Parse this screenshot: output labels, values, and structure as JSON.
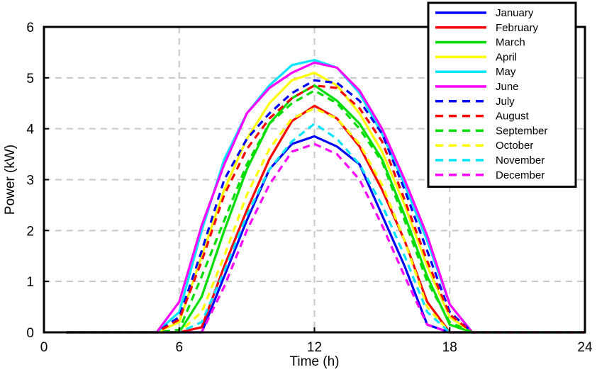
{
  "chart_data": {
    "type": "line",
    "title": "",
    "xlabel": "Time (h)",
    "ylabel": "Power (kW)",
    "xlim": [
      0,
      24
    ],
    "ylim": [
      0,
      6
    ],
    "xticks": [
      0,
      6,
      12,
      18,
      24
    ],
    "yticks": [
      0,
      1,
      2,
      3,
      4,
      5,
      6
    ],
    "grid": true,
    "grid_style": "dashed",
    "legend_position": "top-right",
    "x": [
      1,
      2,
      3,
      4,
      5,
      6,
      7,
      8,
      9,
      10,
      11,
      12,
      13,
      14,
      15,
      16,
      17,
      18,
      19,
      20,
      21,
      22,
      23,
      24
    ],
    "series": [
      {
        "name": "January",
        "color": "#0000ff",
        "dash": "solid",
        "values": [
          0,
          0,
          0,
          0,
          0,
          0,
          0,
          1.1,
          2.2,
          3.2,
          3.7,
          3.85,
          3.65,
          3.3,
          2.3,
          1.3,
          0.15,
          0,
          0,
          0,
          0,
          0,
          0,
          0
        ]
      },
      {
        "name": "February",
        "color": "#ff0000",
        "dash": "solid",
        "values": [
          0,
          0,
          0,
          0,
          0,
          0,
          0.1,
          1.3,
          2.4,
          3.4,
          4.15,
          4.45,
          4.2,
          3.65,
          2.8,
          1.8,
          0.6,
          0,
          0,
          0,
          0,
          0,
          0,
          0
        ]
      },
      {
        "name": "March",
        "color": "#00dd00",
        "dash": "solid",
        "values": [
          0,
          0,
          0,
          0,
          0,
          0,
          0.7,
          2.0,
          3.2,
          4.1,
          4.6,
          4.85,
          4.55,
          4.1,
          3.4,
          2.3,
          1.1,
          0.15,
          0,
          0,
          0,
          0,
          0,
          0
        ]
      },
      {
        "name": "April",
        "color": "#ffff00",
        "dash": "solid",
        "values": [
          0,
          0,
          0,
          0,
          0,
          0.2,
          1.5,
          2.8,
          3.8,
          4.5,
          4.95,
          5.1,
          4.85,
          4.3,
          3.55,
          2.5,
          1.3,
          0.3,
          0,
          0,
          0,
          0,
          0,
          0
        ]
      },
      {
        "name": "May",
        "color": "#00e5ff",
        "dash": "solid",
        "values": [
          0,
          0,
          0,
          0,
          0,
          0.4,
          2.0,
          3.4,
          4.3,
          4.85,
          5.25,
          5.35,
          5.2,
          4.7,
          3.9,
          2.9,
          1.8,
          0.55,
          0,
          0,
          0,
          0,
          0,
          0
        ]
      },
      {
        "name": "June",
        "color": "#ff00ff",
        "dash": "solid",
        "values": [
          0,
          0,
          0,
          0,
          0,
          0.6,
          2.1,
          3.3,
          4.3,
          4.8,
          5.1,
          5.3,
          5.2,
          4.75,
          4.0,
          3.0,
          1.9,
          0.55,
          0,
          0,
          0,
          0,
          0,
          0
        ]
      },
      {
        "name": "July",
        "color": "#0000ff",
        "dash": "dashed",
        "values": [
          0,
          0,
          0,
          0,
          0,
          0.3,
          1.6,
          3.0,
          3.8,
          4.3,
          4.7,
          4.95,
          4.9,
          4.55,
          3.9,
          2.8,
          1.6,
          0.4,
          0,
          0,
          0,
          0,
          0,
          0
        ]
      },
      {
        "name": "August",
        "color": "#ff0000",
        "dash": "dashed",
        "values": [
          0,
          0,
          0,
          0,
          0,
          0.25,
          1.4,
          2.7,
          3.6,
          4.2,
          4.6,
          4.85,
          4.8,
          4.4,
          3.75,
          2.6,
          1.4,
          0.35,
          0,
          0,
          0,
          0,
          0,
          0
        ]
      },
      {
        "name": "September",
        "color": "#00dd00",
        "dash": "dashed",
        "values": [
          0,
          0,
          0,
          0,
          0,
          0.05,
          1.1,
          2.2,
          3.3,
          4.1,
          4.5,
          4.75,
          4.5,
          4.0,
          3.35,
          2.2,
          1.0,
          0.2,
          0,
          0,
          0,
          0,
          0,
          0
        ]
      },
      {
        "name": "October",
        "color": "#ffff00",
        "dash": "dashed",
        "values": [
          0,
          0,
          0,
          0,
          0,
          0,
          0.4,
          1.5,
          2.7,
          3.6,
          4.2,
          4.4,
          4.2,
          3.7,
          2.9,
          1.8,
          0.5,
          0,
          0,
          0,
          0,
          0,
          0,
          0
        ]
      },
      {
        "name": "November",
        "color": "#00e5ff",
        "dash": "dashed",
        "values": [
          0,
          0,
          0,
          0,
          0,
          0,
          0.2,
          1.2,
          2.3,
          3.2,
          3.75,
          4.1,
          3.8,
          3.3,
          2.5,
          1.5,
          0.4,
          0,
          0,
          0,
          0,
          0,
          0,
          0
        ]
      },
      {
        "name": "December",
        "color": "#ff00ff",
        "dash": "dashed",
        "values": [
          0,
          0,
          0,
          0,
          0,
          0,
          0,
          0.9,
          2.0,
          2.9,
          3.55,
          3.7,
          3.5,
          3.0,
          2.1,
          1.1,
          0.15,
          0,
          0,
          0,
          0,
          0,
          0,
          0
        ]
      }
    ]
  }
}
